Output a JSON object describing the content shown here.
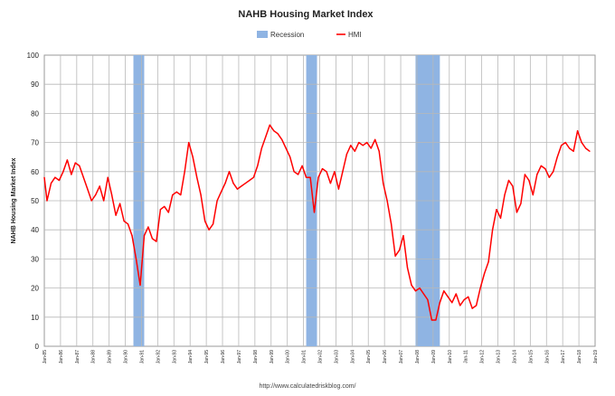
{
  "chart_data": {
    "type": "line",
    "title": "NAHB Housing Market Index",
    "ylabel": "NAHB Housing Market Index",
    "xlabel": "",
    "source": "http://www.calculatedriskblog.com/",
    "xlim": [
      "1985-01",
      "2019-01"
    ],
    "ylim": [
      0,
      100
    ],
    "y_ticks": [
      "0",
      "10",
      "20",
      "30",
      "40",
      "50",
      "60",
      "70",
      "80",
      "90",
      "100"
    ],
    "x_tick_labels": [
      "Jan-85",
      "Jan-86",
      "Jan-87",
      "Jan-88",
      "Jan-89",
      "Jan-90",
      "Jan-91",
      "Jan-92",
      "Jan-93",
      "Jan-94",
      "Jan-95",
      "Jan-96",
      "Jan-97",
      "Jan-98",
      "Jan-99",
      "Jan-00",
      "Jan-01",
      "Jan-02",
      "Jan-03",
      "Jan-04",
      "Jan-05",
      "Jan-06",
      "Jan-07",
      "Jan-08",
      "Jan-09",
      "Jan-10",
      "Jan-11",
      "Jan-12",
      "Jan-13",
      "Jan-14",
      "Jan-15",
      "Jan-16",
      "Jan-17",
      "Jan-18",
      "Jan-19"
    ],
    "grid": true,
    "legend": {
      "placement": "top",
      "entries": [
        {
          "label": "Recession",
          "color": "#8fb4e3",
          "kind": "bar"
        },
        {
          "label": "HMI",
          "color": "#ff0000",
          "kind": "line"
        }
      ]
    },
    "recessions": [
      {
        "start": "1990-07",
        "end": "1991-03"
      },
      {
        "start": "2001-03",
        "end": "2001-11"
      },
      {
        "start": "2007-12",
        "end": "2009-06"
      }
    ],
    "series": [
      {
        "name": "HMI",
        "color": "#ff0000",
        "points": [
          [
            "1985-01",
            58
          ],
          [
            "1985-03",
            50
          ],
          [
            "1985-06",
            56
          ],
          [
            "1985-09",
            58
          ],
          [
            "1985-12",
            57
          ],
          [
            "1986-03",
            60
          ],
          [
            "1986-06",
            64
          ],
          [
            "1986-09",
            59
          ],
          [
            "1986-12",
            63
          ],
          [
            "1987-03",
            62
          ],
          [
            "1987-06",
            58
          ],
          [
            "1987-09",
            54
          ],
          [
            "1987-12",
            50
          ],
          [
            "1988-03",
            52
          ],
          [
            "1988-06",
            55
          ],
          [
            "1988-09",
            50
          ],
          [
            "1988-12",
            58
          ],
          [
            "1989-03",
            52
          ],
          [
            "1989-06",
            45
          ],
          [
            "1989-09",
            49
          ],
          [
            "1989-12",
            43
          ],
          [
            "1990-03",
            42
          ],
          [
            "1990-06",
            38
          ],
          [
            "1990-09",
            30
          ],
          [
            "1990-12",
            21
          ],
          [
            "1991-03",
            38
          ],
          [
            "1991-06",
            41
          ],
          [
            "1991-09",
            37
          ],
          [
            "1991-12",
            36
          ],
          [
            "1992-03",
            47
          ],
          [
            "1992-06",
            48
          ],
          [
            "1992-09",
            46
          ],
          [
            "1992-12",
            52
          ],
          [
            "1993-03",
            53
          ],
          [
            "1993-06",
            52
          ],
          [
            "1993-09",
            60
          ],
          [
            "1993-12",
            70
          ],
          [
            "1994-03",
            65
          ],
          [
            "1994-06",
            58
          ],
          [
            "1994-09",
            52
          ],
          [
            "1994-12",
            43
          ],
          [
            "1995-03",
            40
          ],
          [
            "1995-06",
            42
          ],
          [
            "1995-09",
            50
          ],
          [
            "1995-12",
            53
          ],
          [
            "1996-03",
            56
          ],
          [
            "1996-06",
            60
          ],
          [
            "1996-09",
            56
          ],
          [
            "1996-12",
            54
          ],
          [
            "1997-03",
            55
          ],
          [
            "1997-06",
            56
          ],
          [
            "1997-09",
            57
          ],
          [
            "1997-12",
            58
          ],
          [
            "1998-03",
            62
          ],
          [
            "1998-06",
            68
          ],
          [
            "1998-09",
            72
          ],
          [
            "1998-12",
            76
          ],
          [
            "1999-03",
            74
          ],
          [
            "1999-06",
            73
          ],
          [
            "1999-09",
            71
          ],
          [
            "1999-12",
            68
          ],
          [
            "2000-03",
            65
          ],
          [
            "2000-06",
            60
          ],
          [
            "2000-09",
            59
          ],
          [
            "2000-12",
            62
          ],
          [
            "2001-03",
            58
          ],
          [
            "2001-06",
            58
          ],
          [
            "2001-09",
            46
          ],
          [
            "2001-12",
            58
          ],
          [
            "2002-03",
            61
          ],
          [
            "2002-06",
            60
          ],
          [
            "2002-09",
            56
          ],
          [
            "2002-12",
            60
          ],
          [
            "2003-03",
            54
          ],
          [
            "2003-06",
            60
          ],
          [
            "2003-09",
            66
          ],
          [
            "2003-12",
            69
          ],
          [
            "2004-03",
            67
          ],
          [
            "2004-06",
            70
          ],
          [
            "2004-09",
            69
          ],
          [
            "2004-12",
            70
          ],
          [
            "2005-03",
            68
          ],
          [
            "2005-06",
            71
          ],
          [
            "2005-09",
            67
          ],
          [
            "2005-12",
            56
          ],
          [
            "2006-03",
            50
          ],
          [
            "2006-06",
            42
          ],
          [
            "2006-09",
            31
          ],
          [
            "2006-12",
            33
          ],
          [
            "2007-03",
            38
          ],
          [
            "2007-06",
            27
          ],
          [
            "2007-09",
            21
          ],
          [
            "2007-12",
            19
          ],
          [
            "2008-03",
            20
          ],
          [
            "2008-06",
            18
          ],
          [
            "2008-09",
            16
          ],
          [
            "2008-12",
            9
          ],
          [
            "2009-03",
            9
          ],
          [
            "2009-06",
            15
          ],
          [
            "2009-09",
            19
          ],
          [
            "2009-12",
            17
          ],
          [
            "2010-03",
            15
          ],
          [
            "2010-06",
            18
          ],
          [
            "2010-09",
            14
          ],
          [
            "2010-12",
            16
          ],
          [
            "2011-03",
            17
          ],
          [
            "2011-06",
            13
          ],
          [
            "2011-09",
            14
          ],
          [
            "2011-12",
            20
          ],
          [
            "2012-03",
            25
          ],
          [
            "2012-06",
            29
          ],
          [
            "2012-09",
            40
          ],
          [
            "2012-12",
            47
          ],
          [
            "2013-03",
            44
          ],
          [
            "2013-06",
            52
          ],
          [
            "2013-09",
            57
          ],
          [
            "2013-12",
            55
          ],
          [
            "2014-03",
            46
          ],
          [
            "2014-06",
            49
          ],
          [
            "2014-09",
            59
          ],
          [
            "2014-12",
            57
          ],
          [
            "2015-03",
            52
          ],
          [
            "2015-06",
            59
          ],
          [
            "2015-09",
            62
          ],
          [
            "2015-12",
            61
          ],
          [
            "2016-03",
            58
          ],
          [
            "2016-06",
            60
          ],
          [
            "2016-09",
            65
          ],
          [
            "2016-12",
            69
          ],
          [
            "2017-03",
            70
          ],
          [
            "2017-06",
            68
          ],
          [
            "2017-09",
            67
          ],
          [
            "2017-12",
            74
          ],
          [
            "2018-03",
            70
          ],
          [
            "2018-06",
            68
          ],
          [
            "2018-09",
            67
          ]
        ]
      }
    ]
  }
}
